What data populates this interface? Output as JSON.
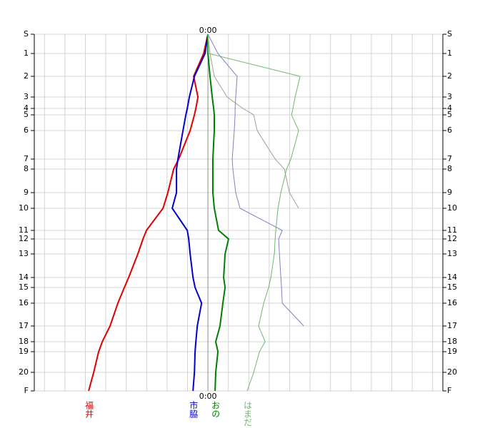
{
  "chart_data": {
    "type": "line",
    "categories": [
      "S",
      "1",
      "2",
      "3",
      "4",
      "5",
      "6",
      "7",
      "8",
      "9",
      "10",
      "11",
      "12",
      "13",
      "14",
      "15",
      "16",
      "17",
      "18",
      "19",
      "20",
      "F"
    ],
    "xlim": [
      -8.5,
      11.5
    ],
    "xticks": [
      {
        "value": 0,
        "label": "0:00"
      }
    ],
    "grid": true,
    "series": [
      {
        "name": "福井",
        "color": "#e00000",
        "width": 2,
        "values": [
          0,
          -0.21,
          -0.7,
          -0.49,
          -0.59,
          -0.66,
          -0.87,
          -1.43,
          -1.68,
          -1.96,
          -2.2,
          -3.01,
          -3.18,
          -3.43,
          -3.88,
          -4.09,
          -4.41,
          -4.79,
          -5.17,
          -5.35,
          -5.59,
          -5.84
        ]
      },
      {
        "name": "市脇",
        "color": "#0000d0",
        "width": 2,
        "values": [
          0,
          -0.14,
          -0.66,
          -0.91,
          -1.01,
          -1.08,
          -1.22,
          -1.47,
          -1.54,
          -1.54,
          -1.75,
          -1.01,
          -0.94,
          -0.87,
          -0.73,
          -0.63,
          -0.31,
          -0.52,
          -0.59,
          -0.63,
          -0.66,
          -0.73
        ]
      },
      {
        "name": "おの",
        "color": "#008000",
        "width": 2,
        "values": [
          0,
          0,
          0.1,
          0.21,
          0.28,
          0.31,
          0.31,
          0.24,
          0.24,
          0.24,
          0.31,
          0.52,
          1.01,
          0.84,
          0.77,
          0.84,
          0.73,
          0.59,
          0.38,
          0.49,
          0.38,
          0.35
        ]
      },
      {
        "name": "はまだ",
        "color": "#70b870",
        "width": 1,
        "values": [
          0,
          0.03,
          4.51,
          4.27,
          4.16,
          4.09,
          4.44,
          4.06,
          3.85,
          3.57,
          3.43,
          3.32,
          3.29,
          3.25,
          3.08,
          2.97,
          2.73,
          2.48,
          2.8,
          2.52,
          2.24,
          1.92
        ]
      },
      {
        "color": "#a0a090",
        "width": 1,
        "values": [
          0,
          0.1,
          0.31,
          0.94,
          1.71,
          2.24,
          2.41,
          3.29,
          3.74,
          3.99,
          4.44,
          null,
          null,
          null,
          null,
          null,
          null,
          null,
          null,
          null,
          null,
          null
        ]
      },
      {
        "color": "#8080c8",
        "width": 1,
        "values": [
          0,
          0.49,
          1.43,
          1.36,
          1.33,
          1.33,
          1.29,
          1.19,
          1.22,
          1.36,
          1.57,
          3.64,
          3.46,
          3.5,
          3.57,
          3.6,
          3.64,
          4.69,
          null,
          null,
          null,
          null
        ]
      }
    ]
  }
}
